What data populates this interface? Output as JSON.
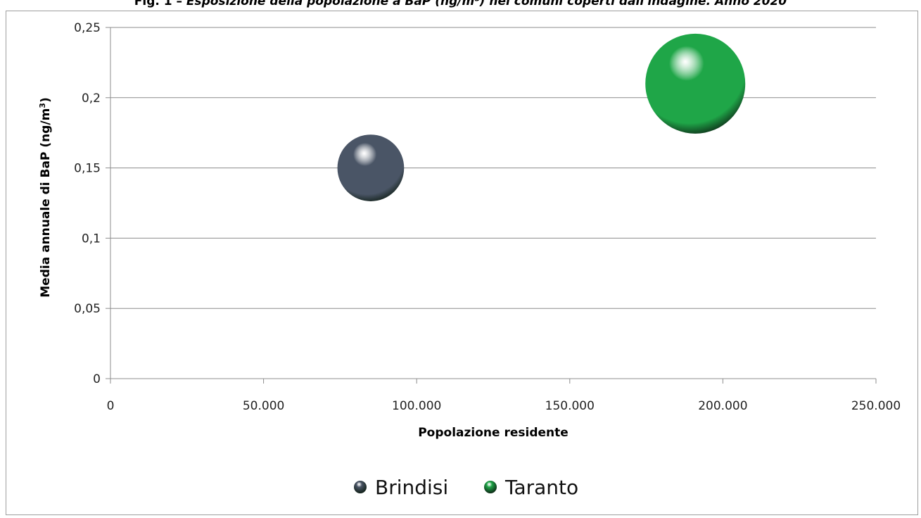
{
  "header": {
    "title_label": "Fig. 1 –",
    "title_text": "Esposizione della popolazione a BaP (ng/m³) nei comuni coperti dall'indagine. Anno 2020"
  },
  "chart_data": {
    "type": "bubble",
    "title": "",
    "xlabel": "Popolazione residente",
    "ylabel_main": "Media annuale di BaP (ng/m",
    "ylabel_sup": "3",
    "ylabel_end": ")",
    "xlim": [
      0,
      250000
    ],
    "ylim": [
      0,
      0.25
    ],
    "x_ticks": [
      {
        "value": 0,
        "label": "0"
      },
      {
        "value": 50000,
        "label": "50.000"
      },
      {
        "value": 100000,
        "label": "100.000"
      },
      {
        "value": 150000,
        "label": "150.000"
      },
      {
        "value": 200000,
        "label": "200.000"
      },
      {
        "value": 250000,
        "label": "250.000"
      }
    ],
    "y_ticks": [
      {
        "value": 0,
        "label": "0"
      },
      {
        "value": 0.05,
        "label": "0,05"
      },
      {
        "value": 0.1,
        "label": "0,1"
      },
      {
        "value": 0.15,
        "label": "0,15"
      },
      {
        "value": 0.2,
        "label": "0,2"
      },
      {
        "value": 0.25,
        "label": "0,25"
      }
    ],
    "grid": true,
    "legend_position": "bottom",
    "series": [
      {
        "name": "Brindisi",
        "x": 85000,
        "y": 0.15,
        "size": 85000,
        "color": "#4a5566"
      },
      {
        "name": "Taranto",
        "x": 191000,
        "y": 0.21,
        "size": 191000,
        "color": "#1fa648"
      }
    ]
  }
}
